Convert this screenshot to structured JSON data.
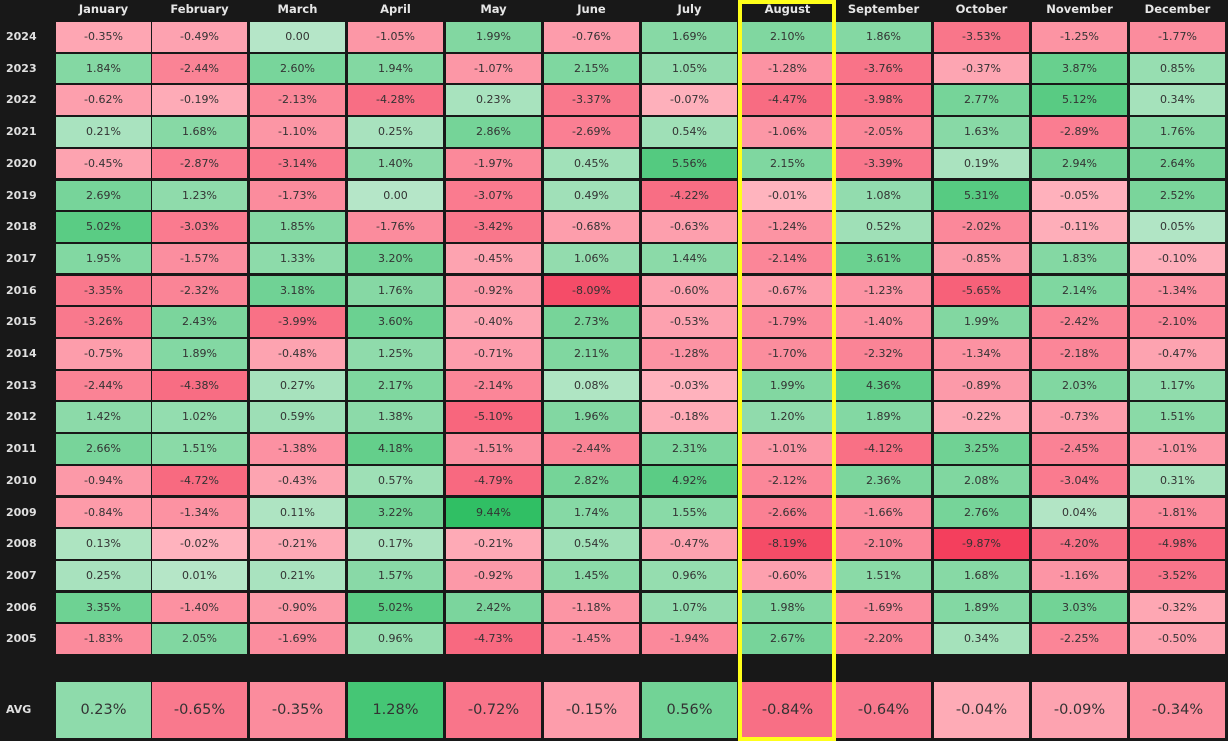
{
  "months": [
    "January",
    "February",
    "March",
    "April",
    "May",
    "June",
    "July",
    "August",
    "September",
    "October",
    "November",
    "December"
  ],
  "highlighted_month": "August",
  "highlight_color": "#ffff1a",
  "rows": [
    {
      "year": "2024",
      "values": [
        "-0.35%",
        "-0.49%",
        "0.00",
        "-1.05%",
        "1.99%",
        "-0.76%",
        "1.69%",
        "2.10%",
        "1.86%",
        "-3.53%",
        "-1.25%",
        "-1.77%"
      ]
    },
    {
      "year": "2023",
      "values": [
        "1.84%",
        "-2.44%",
        "2.60%",
        "1.94%",
        "-1.07%",
        "2.15%",
        "1.05%",
        "-1.28%",
        "-3.76%",
        "-0.37%",
        "3.87%",
        "0.85%"
      ]
    },
    {
      "year": "2022",
      "values": [
        "-0.62%",
        "-0.19%",
        "-2.13%",
        "-4.28%",
        "0.23%",
        "-3.37%",
        "-0.07%",
        "-4.47%",
        "-3.98%",
        "2.77%",
        "5.12%",
        "0.34%"
      ]
    },
    {
      "year": "2021",
      "values": [
        "0.21%",
        "1.68%",
        "-1.10%",
        "0.25%",
        "2.86%",
        "-2.69%",
        "0.54%",
        "-1.06%",
        "-2.05%",
        "1.63%",
        "-2.89%",
        "1.76%"
      ]
    },
    {
      "year": "2020",
      "values": [
        "-0.45%",
        "-2.87%",
        "-3.14%",
        "1.40%",
        "-1.97%",
        "0.45%",
        "5.56%",
        "2.15%",
        "-3.39%",
        "0.19%",
        "2.94%",
        "2.64%"
      ]
    },
    {
      "year": "2019",
      "values": [
        "2.69%",
        "1.23%",
        "-1.73%",
        "0.00",
        "-3.07%",
        "0.49%",
        "-4.22%",
        "-0.01%",
        "1.08%",
        "5.31%",
        "-0.05%",
        "2.52%"
      ]
    },
    {
      "year": "2018",
      "values": [
        "5.02%",
        "-3.03%",
        "1.85%",
        "-1.76%",
        "-3.42%",
        "-0.68%",
        "-0.63%",
        "-1.24%",
        "0.52%",
        "-2.02%",
        "-0.11%",
        "0.05%"
      ]
    },
    {
      "year": "2017",
      "values": [
        "1.95%",
        "-1.57%",
        "1.33%",
        "3.20%",
        "-0.45%",
        "1.06%",
        "1.44%",
        "-2.14%",
        "3.61%",
        "-0.85%",
        "1.83%",
        "-0.10%"
      ]
    },
    {
      "year": "2016",
      "values": [
        "-3.35%",
        "-2.32%",
        "3.18%",
        "1.76%",
        "-0.92%",
        "-8.09%",
        "-0.60%",
        "-0.67%",
        "-1.23%",
        "-5.65%",
        "2.14%",
        "-1.34%"
      ]
    },
    {
      "year": "2015",
      "values": [
        "-3.26%",
        "2.43%",
        "-3.99%",
        "3.60%",
        "-0.40%",
        "2.73%",
        "-0.53%",
        "-1.79%",
        "-1.40%",
        "1.99%",
        "-2.42%",
        "-2.10%"
      ]
    },
    {
      "year": "2014",
      "values": [
        "-0.75%",
        "1.89%",
        "-0.48%",
        "1.25%",
        "-0.71%",
        "2.11%",
        "-1.28%",
        "-1.70%",
        "-2.32%",
        "-1.34%",
        "-2.18%",
        "-0.47%"
      ]
    },
    {
      "year": "2013",
      "values": [
        "-2.44%",
        "-4.38%",
        "0.27%",
        "2.17%",
        "-2.14%",
        "0.08%",
        "-0.03%",
        "1.99%",
        "4.36%",
        "-0.89%",
        "2.03%",
        "1.17%"
      ]
    },
    {
      "year": "2012",
      "values": [
        "1.42%",
        "1.02%",
        "0.59%",
        "1.38%",
        "-5.10%",
        "1.96%",
        "-0.18%",
        "1.20%",
        "1.89%",
        "-0.22%",
        "-0.73%",
        "1.51%"
      ]
    },
    {
      "year": "2011",
      "values": [
        "2.66%",
        "1.51%",
        "-1.38%",
        "4.18%",
        "-1.51%",
        "-2.44%",
        "2.31%",
        "-1.01%",
        "-4.12%",
        "3.25%",
        "-2.45%",
        "-1.01%"
      ]
    },
    {
      "year": "2010",
      "values": [
        "-0.94%",
        "-4.72%",
        "-0.43%",
        "0.57%",
        "-4.79%",
        "2.82%",
        "4.92%",
        "-2.12%",
        "2.36%",
        "2.08%",
        "-3.04%",
        "0.31%"
      ]
    },
    {
      "year": "2009",
      "values": [
        "-0.84%",
        "-1.34%",
        "0.11%",
        "3.22%",
        "9.44%",
        "1.74%",
        "1.55%",
        "-2.66%",
        "-1.66%",
        "2.76%",
        "0.04%",
        "-1.81%"
      ]
    },
    {
      "year": "2008",
      "values": [
        "0.13%",
        "-0.02%",
        "-0.21%",
        "0.17%",
        "-0.21%",
        "0.54%",
        "-0.47%",
        "-8.19%",
        "-2.10%",
        "-9.87%",
        "-4.20%",
        "-4.98%"
      ]
    },
    {
      "year": "2007",
      "values": [
        "0.25%",
        "0.01%",
        "0.21%",
        "1.57%",
        "-0.92%",
        "1.45%",
        "0.96%",
        "-0.60%",
        "1.51%",
        "1.68%",
        "-1.16%",
        "-3.52%"
      ]
    },
    {
      "year": "2006",
      "values": [
        "3.35%",
        "-1.40%",
        "-0.90%",
        "5.02%",
        "2.42%",
        "-1.18%",
        "1.07%",
        "1.98%",
        "-1.69%",
        "1.89%",
        "3.03%",
        "-0.32%"
      ]
    },
    {
      "year": "2005",
      "values": [
        "-1.83%",
        "2.05%",
        "-1.69%",
        "0.96%",
        "-4.73%",
        "-1.45%",
        "-1.94%",
        "2.67%",
        "-2.20%",
        "0.34%",
        "-2.25%",
        "-0.50%"
      ]
    }
  ],
  "avg": {
    "label": "AVG",
    "values": [
      "0.23%",
      "-0.65%",
      "-0.35%",
      "1.28%",
      "-0.72%",
      "-0.15%",
      "0.56%",
      "-0.84%",
      "-0.64%",
      "-0.04%",
      "-0.09%",
      "-0.34%"
    ]
  },
  "chart_data": {
    "type": "heatmap",
    "title": "",
    "x": [
      "January",
      "February",
      "March",
      "April",
      "May",
      "June",
      "July",
      "August",
      "September",
      "October",
      "November",
      "December"
    ],
    "y": [
      "2024",
      "2023",
      "2022",
      "2021",
      "2020",
      "2019",
      "2018",
      "2017",
      "2016",
      "2015",
      "2014",
      "2013",
      "2012",
      "2011",
      "2010",
      "2009",
      "2008",
      "2007",
      "2006",
      "2005",
      "AVG"
    ],
    "values": [
      [
        -0.35,
        -0.49,
        0.0,
        -1.05,
        1.99,
        -0.76,
        1.69,
        2.1,
        1.86,
        -3.53,
        -1.25,
        -1.77
      ],
      [
        1.84,
        -2.44,
        2.6,
        1.94,
        -1.07,
        2.15,
        1.05,
        -1.28,
        -3.76,
        -0.37,
        3.87,
        0.85
      ],
      [
        -0.62,
        -0.19,
        -2.13,
        -4.28,
        0.23,
        -3.37,
        -0.07,
        -4.47,
        -3.98,
        2.77,
        5.12,
        0.34
      ],
      [
        0.21,
        1.68,
        -1.1,
        0.25,
        2.86,
        -2.69,
        0.54,
        -1.06,
        -2.05,
        1.63,
        -2.89,
        1.76
      ],
      [
        -0.45,
        -2.87,
        -3.14,
        1.4,
        -1.97,
        0.45,
        5.56,
        2.15,
        -3.39,
        0.19,
        2.94,
        2.64
      ],
      [
        2.69,
        1.23,
        -1.73,
        0.0,
        -3.07,
        0.49,
        -4.22,
        -0.01,
        1.08,
        5.31,
        -0.05,
        2.52
      ],
      [
        5.02,
        -3.03,
        1.85,
        -1.76,
        -3.42,
        -0.68,
        -0.63,
        -1.24,
        0.52,
        -2.02,
        -0.11,
        0.05
      ],
      [
        1.95,
        -1.57,
        1.33,
        3.2,
        -0.45,
        1.06,
        1.44,
        -2.14,
        3.61,
        -0.85,
        1.83,
        -0.1
      ],
      [
        -3.35,
        -2.32,
        3.18,
        1.76,
        -0.92,
        -8.09,
        -0.6,
        -0.67,
        -1.23,
        -5.65,
        2.14,
        -1.34
      ],
      [
        -3.26,
        2.43,
        -3.99,
        3.6,
        -0.4,
        2.73,
        -0.53,
        -1.79,
        -1.4,
        1.99,
        -2.42,
        -2.1
      ],
      [
        -0.75,
        1.89,
        -0.48,
        1.25,
        -0.71,
        2.11,
        -1.28,
        -1.7,
        -2.32,
        -1.34,
        -2.18,
        -0.47
      ],
      [
        -2.44,
        -4.38,
        0.27,
        2.17,
        -2.14,
        0.08,
        -0.03,
        1.99,
        4.36,
        -0.89,
        2.03,
        1.17
      ],
      [
        1.42,
        1.02,
        0.59,
        1.38,
        -5.1,
        1.96,
        -0.18,
        1.2,
        1.89,
        -0.22,
        -0.73,
        1.51
      ],
      [
        2.66,
        1.51,
        -1.38,
        4.18,
        -1.51,
        -2.44,
        2.31,
        -1.01,
        -4.12,
        3.25,
        -2.45,
        -1.01
      ],
      [
        -0.94,
        -4.72,
        -0.43,
        0.57,
        -4.79,
        2.82,
        4.92,
        -2.12,
        2.36,
        2.08,
        -3.04,
        0.31
      ],
      [
        -0.84,
        -1.34,
        0.11,
        3.22,
        9.44,
        1.74,
        1.55,
        -2.66,
        -1.66,
        2.76,
        0.04,
        -1.81
      ],
      [
        0.13,
        -0.02,
        -0.21,
        0.17,
        -0.21,
        0.54,
        -0.47,
        -8.19,
        -2.1,
        -9.87,
        -4.2,
        -4.98
      ],
      [
        0.25,
        0.01,
        0.21,
        1.57,
        -0.92,
        1.45,
        0.96,
        -0.6,
        1.51,
        1.68,
        -1.16,
        -3.52
      ],
      [
        3.35,
        -1.4,
        -0.9,
        5.02,
        2.42,
        -1.18,
        1.07,
        1.98,
        -1.69,
        1.89,
        3.03,
        -0.32
      ],
      [
        -1.83,
        2.05,
        -1.69,
        0.96,
        -4.73,
        -1.45,
        -1.94,
        2.67,
        -2.2,
        0.34,
        -2.25,
        -0.5
      ],
      [
        0.23,
        -0.65,
        -0.35,
        1.28,
        -0.72,
        -0.15,
        0.56,
        -0.84,
        -0.64,
        -0.04,
        -0.09,
        -0.34
      ]
    ],
    "value_format": "percent",
    "colorscale": {
      "negative": "#f43f5e",
      "zero": "#ffb3bd",
      "positive": "#2fbf64"
    },
    "annotations": [
      "August column highlighted with yellow border"
    ],
    "xlabel": "",
    "ylabel": ""
  }
}
